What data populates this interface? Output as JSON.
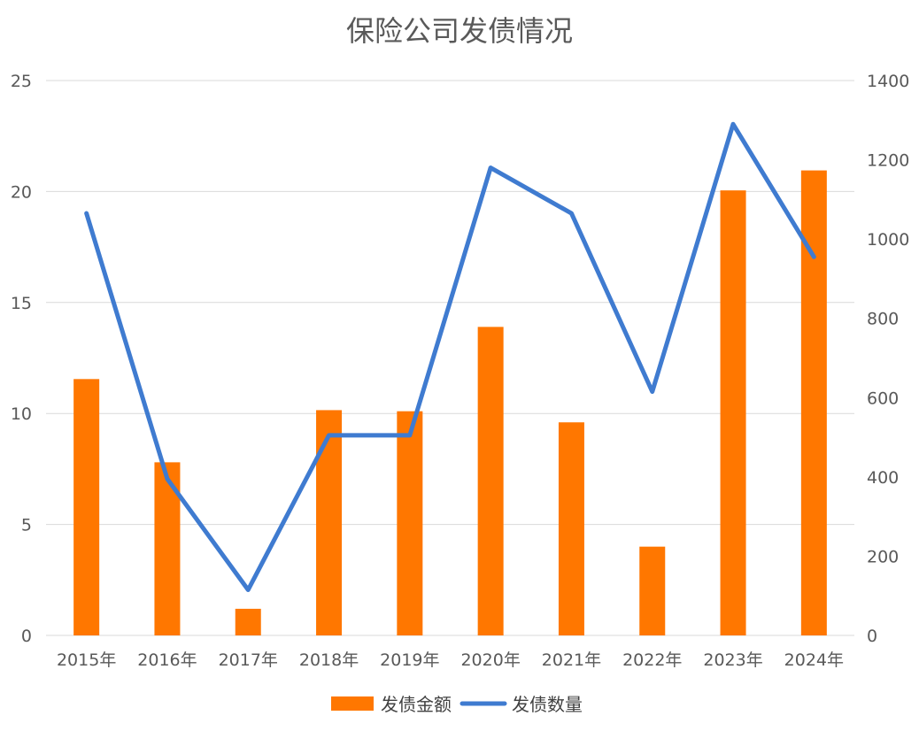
{
  "chart_data": {
    "type": "bar",
    "title": "保险公司发债情况",
    "categories": [
      "2015年",
      "2016年",
      "2017年",
      "2018年",
      "2019年",
      "2020年",
      "2021年",
      "2022年",
      "2023年",
      "2024年"
    ],
    "series": [
      {
        "name": "发债金额",
        "type": "bar",
        "axis": "left",
        "values": [
          11.55,
          7.8,
          1.2,
          10.15,
          10.1,
          13.9,
          9.6,
          4.0,
          20.05,
          20.95
        ]
      },
      {
        "name": "发债数量",
        "type": "line",
        "axis": "right",
        "values": [
          1065,
          395,
          115,
          505,
          505,
          1180,
          1065,
          615,
          1290,
          955
        ]
      }
    ],
    "y_left": {
      "ylim": [
        0,
        25
      ],
      "ticks": [
        0,
        5,
        10,
        15,
        20,
        25
      ]
    },
    "y_right": {
      "ylim": [
        0,
        1400
      ],
      "ticks": [
        0,
        200,
        400,
        600,
        800,
        1000,
        1200,
        1400
      ]
    },
    "grid": true,
    "legend": "bottom",
    "colors": {
      "bar": "#FF7700",
      "line": "#3F7BD0"
    }
  }
}
